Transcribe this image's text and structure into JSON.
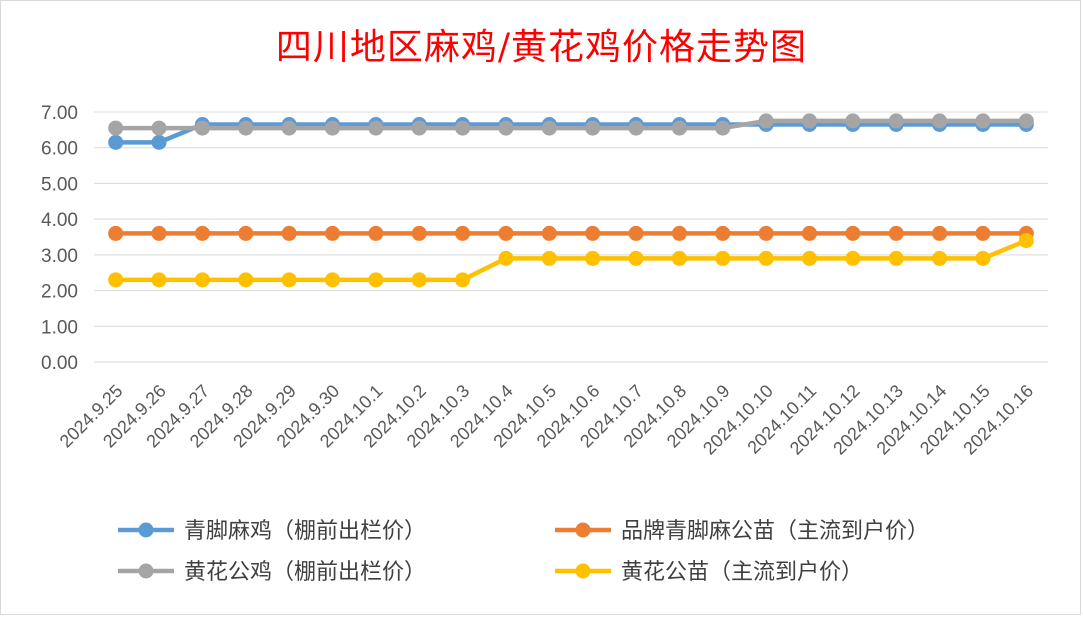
{
  "chart_data": {
    "type": "line",
    "title": "四川地区麻鸡/黄花鸡价格走势图",
    "xlabel": "",
    "ylabel": "",
    "ylim": [
      0,
      7
    ],
    "y_ticks": [
      "0.00",
      "1.00",
      "2.00",
      "3.00",
      "4.00",
      "5.00",
      "6.00",
      "7.00"
    ],
    "grid": true,
    "legend_position": "bottom",
    "categories": [
      "2024.9.25",
      "2024.9.26",
      "2024.9.27",
      "2024.9.28",
      "2024.9.29",
      "2024.9.30",
      "2024.10.1",
      "2024.10.2",
      "2024.10.3",
      "2024.10.4",
      "2024.10.5",
      "2024.10.6",
      "2024.10.7",
      "2024.10.8",
      "2024.10.9",
      "2024.10.10",
      "2024.10.11",
      "2024.10.12",
      "2024.10.13",
      "2024.10.14",
      "2024.10.15",
      "2024.10.16"
    ],
    "series": [
      {
        "name": "青脚麻鸡（棚前出栏价）",
        "color": "#5b9bd5",
        "values": [
          6.15,
          6.15,
          6.65,
          6.65,
          6.65,
          6.65,
          6.65,
          6.65,
          6.65,
          6.65,
          6.65,
          6.65,
          6.65,
          6.65,
          6.65,
          6.65,
          6.65,
          6.65,
          6.65,
          6.65,
          6.65,
          6.65
        ]
      },
      {
        "name": "品牌青脚麻公苗（主流到户价）",
        "color": "#ed7d31",
        "values": [
          3.6,
          3.6,
          3.6,
          3.6,
          3.6,
          3.6,
          3.6,
          3.6,
          3.6,
          3.6,
          3.6,
          3.6,
          3.6,
          3.6,
          3.6,
          3.6,
          3.6,
          3.6,
          3.6,
          3.6,
          3.6,
          3.6
        ]
      },
      {
        "name": "黄花公鸡（棚前出栏价）",
        "color": "#a5a5a5",
        "values": [
          6.55,
          6.55,
          6.55,
          6.55,
          6.55,
          6.55,
          6.55,
          6.55,
          6.55,
          6.55,
          6.55,
          6.55,
          6.55,
          6.55,
          6.55,
          6.75,
          6.75,
          6.75,
          6.75,
          6.75,
          6.75,
          6.75
        ]
      },
      {
        "name": "黄花公苗（主流到户价）",
        "color": "#ffc000",
        "values": [
          2.3,
          2.3,
          2.3,
          2.3,
          2.3,
          2.3,
          2.3,
          2.3,
          2.3,
          2.9,
          2.9,
          2.9,
          2.9,
          2.9,
          2.9,
          2.9,
          2.9,
          2.9,
          2.9,
          2.9,
          2.9,
          3.4
        ]
      }
    ]
  }
}
